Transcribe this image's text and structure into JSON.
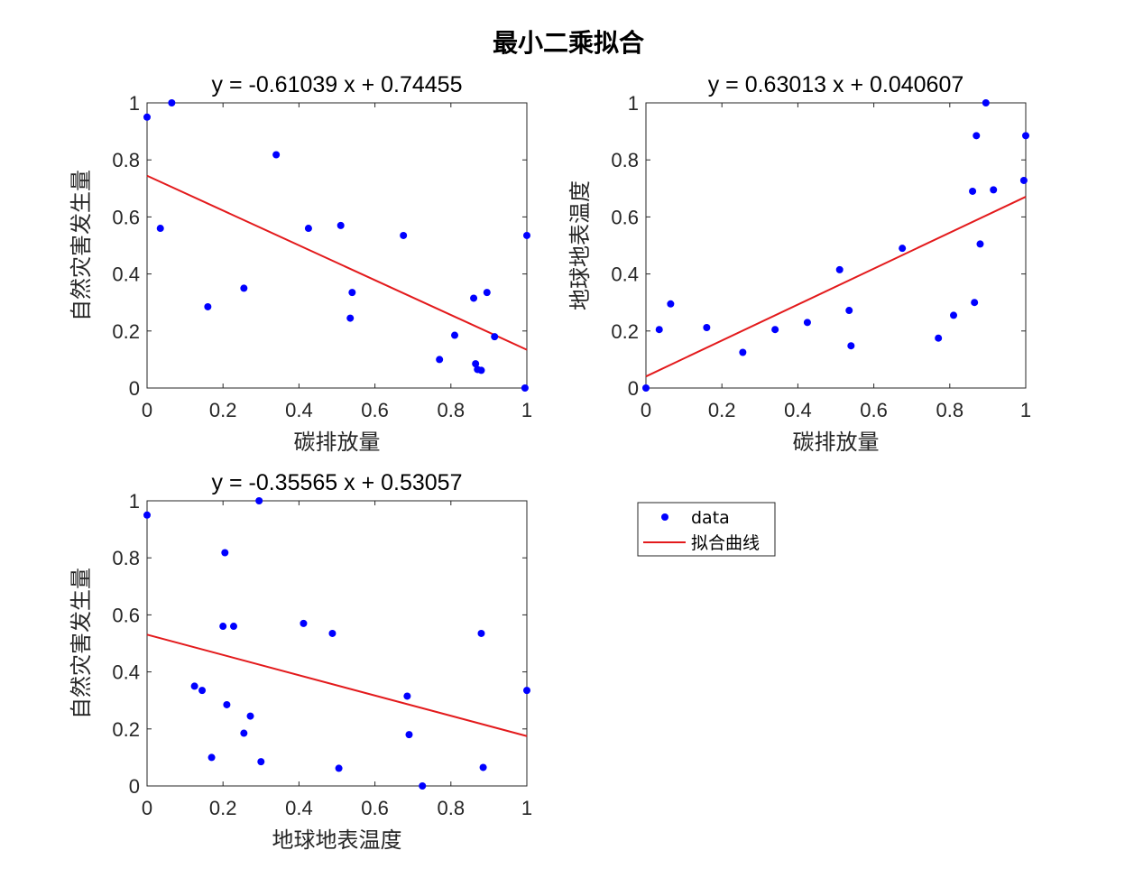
{
  "figure_title": "最小二乘拟合",
  "colors": {
    "data": "#0000ff",
    "fit": "#e31a1c",
    "axis": "#262626"
  },
  "legend": {
    "data_label": "data",
    "fit_label": "拟合曲线",
    "placement": "right-center"
  },
  "chart_data": [
    {
      "type": "scatter",
      "title": "y = -0.61039 x + 0.74455",
      "xlabel": "碳排放量",
      "ylabel": "自然灾害发生量",
      "xlim": [
        0,
        1
      ],
      "ylim": [
        0,
        1
      ],
      "xticks": [
        "0",
        "0.2",
        "0.4",
        "0.6",
        "0.8",
        "1"
      ],
      "yticks": [
        "0",
        "0.2",
        "0.4",
        "0.6",
        "0.8",
        "1"
      ],
      "fit": {
        "slope": -0.61039,
        "intercept": 0.74455
      },
      "points": [
        [
          0.0,
          0.95
        ],
        [
          0.035,
          0.56
        ],
        [
          0.065,
          1.0
        ],
        [
          0.16,
          0.285
        ],
        [
          0.255,
          0.35
        ],
        [
          0.34,
          0.818
        ],
        [
          0.425,
          0.56
        ],
        [
          0.51,
          0.57
        ],
        [
          0.535,
          0.245
        ],
        [
          0.54,
          0.335
        ],
        [
          0.675,
          0.535
        ],
        [
          0.77,
          0.1
        ],
        [
          0.81,
          0.185
        ],
        [
          0.86,
          0.315
        ],
        [
          0.865,
          0.085
        ],
        [
          0.87,
          0.065
        ],
        [
          0.88,
          0.062
        ],
        [
          0.895,
          0.335
        ],
        [
          0.915,
          0.18
        ],
        [
          0.995,
          0.0
        ],
        [
          1.0,
          0.535
        ]
      ]
    },
    {
      "type": "scatter",
      "title": "y = 0.63013 x + 0.040607",
      "xlabel": "碳排放量",
      "ylabel": "地球地表温度",
      "xlim": [
        0,
        1
      ],
      "ylim": [
        0,
        1
      ],
      "xticks": [
        "0",
        "0.2",
        "0.4",
        "0.6",
        "0.8",
        "1"
      ],
      "yticks": [
        "0",
        "0.2",
        "0.4",
        "0.6",
        "0.8",
        "1"
      ],
      "fit": {
        "slope": 0.63013,
        "intercept": 0.040607
      },
      "points": [
        [
          0.0,
          0.0
        ],
        [
          0.035,
          0.205
        ],
        [
          0.065,
          0.295
        ],
        [
          0.16,
          0.212
        ],
        [
          0.255,
          0.125
        ],
        [
          0.34,
          0.205
        ],
        [
          0.425,
          0.23
        ],
        [
          0.51,
          0.415
        ],
        [
          0.535,
          0.272
        ],
        [
          0.54,
          0.148
        ],
        [
          0.675,
          0.49
        ],
        [
          0.77,
          0.175
        ],
        [
          0.81,
          0.255
        ],
        [
          0.86,
          0.69
        ],
        [
          0.865,
          0.3
        ],
        [
          0.87,
          0.885
        ],
        [
          0.88,
          0.505
        ],
        [
          0.895,
          1.0
        ],
        [
          0.915,
          0.695
        ],
        [
          0.995,
          0.728
        ],
        [
          1.0,
          0.885
        ]
      ]
    },
    {
      "type": "scatter",
      "title": "y = -0.35565 x + 0.53057",
      "xlabel": "地球地表温度",
      "ylabel": "自然灾害发生量",
      "xlim": [
        0,
        1
      ],
      "ylim": [
        0,
        1
      ],
      "xticks": [
        "0",
        "0.2",
        "0.4",
        "0.6",
        "0.8",
        "1"
      ],
      "yticks": [
        "0",
        "0.2",
        "0.4",
        "0.6",
        "0.8",
        "1"
      ],
      "fit": {
        "slope": -0.35565,
        "intercept": 0.53057
      },
      "points": [
        [
          0.0,
          0.95
        ],
        [
          0.125,
          0.35
        ],
        [
          0.145,
          0.335
        ],
        [
          0.17,
          0.1
        ],
        [
          0.2,
          0.56
        ],
        [
          0.205,
          0.818
        ],
        [
          0.21,
          0.285
        ],
        [
          0.228,
          0.56
        ],
        [
          0.255,
          0.185
        ],
        [
          0.272,
          0.245
        ],
        [
          0.295,
          1.0
        ],
        [
          0.3,
          0.085
        ],
        [
          0.412,
          0.57
        ],
        [
          0.488,
          0.535
        ],
        [
          0.505,
          0.062
        ],
        [
          0.685,
          0.315
        ],
        [
          0.69,
          0.18
        ],
        [
          0.725,
          0.0
        ],
        [
          0.88,
          0.535
        ],
        [
          0.885,
          0.065
        ],
        [
          1.0,
          0.335
        ]
      ]
    }
  ]
}
